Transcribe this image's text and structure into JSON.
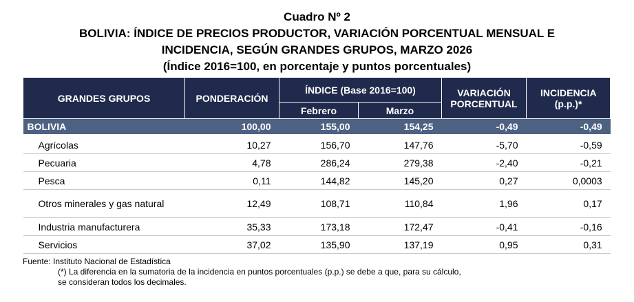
{
  "header": {
    "title": "Cuadro Nº 2",
    "heading_lines": [
      "BOLIVIA: ÍNDICE DE PRECIOS PRODUCTOR, VARIACIÓN PORCENTUAL MENSUAL E",
      "INCIDENCIA, SEGÚN GRANDES GRUPOS, MARZO 2026"
    ],
    "units": "(Índice 2016=100, en porcentaje y puntos porcentuales)"
  },
  "table": {
    "columns": {
      "group": "GRANDES GRUPOS",
      "weight": "PONDERACIÓN",
      "index": "ÍNDICE (Base 2016=100)",
      "index_feb": "Febrero",
      "index_mar": "Marzo",
      "variation": "VARIACIÓN PORCENTUAL",
      "incidence": "INCIDENCIA (p.p.)*"
    },
    "total": [
      "BOLIVIA",
      "100,00",
      "155,00",
      "154,25",
      "-0,49",
      "-0,49"
    ],
    "rows": [
      [
        "Agrícolas",
        "10,27",
        "156,70",
        "147,76",
        "-5,70",
        "-0,59"
      ],
      [
        "Pecuaria",
        "4,78",
        "286,24",
        "279,38",
        "-2,40",
        "-0,21"
      ],
      [
        "Pesca",
        "0,11",
        "144,82",
        "145,20",
        "0,27",
        "0,0003"
      ],
      [
        "Otros minerales y gas natural",
        "12,49",
        "108,71",
        "110,84",
        "1,96",
        "0,17"
      ],
      [
        "Industria manufacturera",
        "35,33",
        "173,18",
        "172,47",
        "-0,41",
        "-0,16"
      ],
      [
        "Servicios",
        "37,02",
        "135,90",
        "137,19",
        "0,95",
        "0,31"
      ]
    ]
  },
  "footer": {
    "source": "Fuente: Instituto Nacional de Estadística",
    "note_lines": [
      "(*) La diferencia en la sumatoria de la incidencia en puntos porcentuales (p.p.) se debe a que, para su cálculo,",
      "se consideran todos los decimales."
    ]
  }
}
